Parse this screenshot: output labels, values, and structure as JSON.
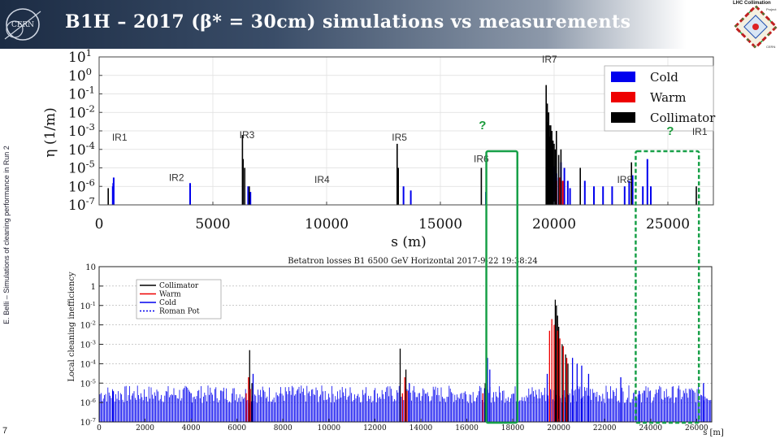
{
  "slide": {
    "title": "B1H – 2017 (β* = 30cm) simulations vs measurements",
    "side_text": "E. Belli – Simulations of cleaning performance in Run 2",
    "page_number": "7",
    "logo_text": "CERN",
    "project_title": "LHC Collimation",
    "project_sub": "Project",
    "project_cern": "CERN",
    "colors": {
      "cold": "#0000ee",
      "warm": "#ee0000",
      "collimator": "#000000",
      "green_box": "#18a048",
      "header_dark": "#1c2c44"
    }
  },
  "chart_data": [
    {
      "type": "bar",
      "title": "",
      "xlabel": "s (m)",
      "ylabel": "η (1/m)",
      "xlim": [
        0,
        27000
      ],
      "ylim": [
        1e-07,
        10
      ],
      "yscale": "log",
      "grid": true,
      "xticks": [
        "0",
        "5000",
        "10000",
        "15000",
        "20000",
        "25000"
      ],
      "yticks": [
        "10^1",
        "10^0",
        "10^-1",
        "10^-2",
        "10^-3",
        "10^-4",
        "10^-5",
        "10^-6",
        "10^-7"
      ],
      "legend_position": "top-right",
      "series": [
        {
          "name": "Cold",
          "color": "#0000ee",
          "points": [
            [
              600,
              1e-06
            ],
            [
              620,
              1.5e-06
            ],
            [
              640,
              3e-06
            ],
            [
              4000,
              1.5e-06
            ],
            [
              6550,
              1e-06
            ],
            [
              6650,
              5e-07
            ],
            [
              13380,
              1e-06
            ],
            [
              13700,
              6e-07
            ],
            [
              17000,
              5e-07
            ],
            [
              19880,
              3e-06
            ],
            [
              19950,
              8e-06
            ],
            [
              20000,
              1.2e-05
            ],
            [
              20100,
              5e-06
            ],
            [
              20200,
              3e-06
            ],
            [
              20300,
              2e-05
            ],
            [
              20450,
              1e-05
            ],
            [
              20600,
              2e-06
            ],
            [
              20700,
              8e-07
            ],
            [
              21350,
              2e-06
            ],
            [
              21750,
              1e-06
            ],
            [
              22150,
              1e-06
            ],
            [
              22550,
              1e-06
            ],
            [
              23100,
              1e-06
            ],
            [
              23300,
              2e-06
            ],
            [
              23450,
              4e-06
            ],
            [
              23900,
              1e-06
            ],
            [
              24100,
              3e-05
            ],
            [
              24250,
              1e-06
            ]
          ]
        },
        {
          "name": "Warm",
          "color": "#ee0000",
          "points": [
            [
              19900,
              2e-06
            ],
            [
              20100,
              2e-06
            ],
            [
              20250,
              3e-06
            ],
            [
              20380,
              2e-06
            ]
          ]
        },
        {
          "name": "Collimator",
          "color": "#000000",
          "points": [
            [
              400,
              8e-07
            ],
            [
              6300,
              0.0006
            ],
            [
              6330,
              3e-05
            ],
            [
              6400,
              1e-05
            ],
            [
              6600,
              1e-06
            ],
            [
              13100,
              0.0002
            ],
            [
              13150,
              1e-05
            ],
            [
              16800,
              1e-05
            ],
            [
              19650,
              0.3
            ],
            [
              19700,
              0.03
            ],
            [
              19730,
              0.003
            ],
            [
              19760,
              0.01
            ],
            [
              19790,
              0.002
            ],
            [
              19820,
              0.0005
            ],
            [
              19850,
              0.002
            ],
            [
              19900,
              0.001
            ],
            [
              19950,
              0.0003
            ],
            [
              20000,
              0.0002
            ],
            [
              20050,
              0.0001
            ],
            [
              20100,
              0.001
            ],
            [
              20200,
              5e-05
            ],
            [
              20300,
              0.0001
            ],
            [
              21150,
              1e-05
            ],
            [
              23400,
              2e-05
            ],
            [
              26250,
              1e-06
            ]
          ]
        }
      ],
      "annotations": {
        "ir_labels": [
          {
            "label": "IR7",
            "s": 19800,
            "y": 5
          },
          {
            "label": "IR1",
            "s": 900,
            "y": 0.0003
          },
          {
            "label": "IR3",
            "s": 6500,
            "y": 0.0004
          },
          {
            "label": "IR5",
            "s": 13200,
            "y": 0.0003
          },
          {
            "label": "IR6",
            "s": 16800,
            "y": 2e-05
          },
          {
            "label": "IR2",
            "s": 3400,
            "y": 2e-06
          },
          {
            "label": "IR4",
            "s": 9800,
            "y": 1.5e-06
          },
          {
            "label": "IR8",
            "s": 23100,
            "y": 1.5e-06
          },
          {
            "label": "IR1",
            "s": 26400,
            "y": 0.0006
          }
        ],
        "question_marks": [
          {
            "label": "?",
            "s": 16850,
            "y": 0.0012
          },
          {
            "label": "?",
            "s": 25100,
            "y": 0.0006
          }
        ]
      }
    },
    {
      "type": "bar",
      "title": "Betatron losses B1 6500 GeV Horizontal 2017-9-22 19:38:24",
      "xlabel": "s [m]",
      "ylabel": "Local cleaning inefficiency",
      "xlim": [
        0,
        26659
      ],
      "ylim": [
        1e-07,
        10
      ],
      "yscale": "log",
      "grid": true,
      "xticks": [
        "0",
        "2000",
        "4000",
        "6000",
        "8000",
        "10000",
        "12000",
        "14000",
        "16000",
        "18000",
        "20000",
        "22000",
        "24000",
        "26000"
      ],
      "yticks": [
        "10",
        "1",
        "10^-1",
        "10^-2",
        "10^-3",
        "10^-4",
        "10^-5",
        "10^-6",
        "10^-7"
      ],
      "legend_position": "top-left",
      "series": [
        {
          "name": "Collimator",
          "color": "#000000",
          "points": [
            [
              6550,
              0.0005
            ],
            [
              6650,
              1e-05
            ],
            [
              13100,
              0.0006
            ],
            [
              13350,
              5e-05
            ],
            [
              16800,
              1e-05
            ],
            [
              19850,
              0.2
            ],
            [
              19900,
              0.1
            ],
            [
              19950,
              0.03
            ],
            [
              20000,
              0.008
            ],
            [
              20150,
              0.001
            ],
            [
              20300,
              0.0003
            ],
            [
              20400,
              0.0001
            ]
          ]
        },
        {
          "name": "Warm",
          "color": "#ee0000",
          "points": [
            [
              6400,
              3e-06
            ],
            [
              6500,
              2e-05
            ],
            [
              6580,
              5e-06
            ],
            [
              13200,
              3e-06
            ],
            [
              13300,
              2e-05
            ],
            [
              13400,
              4e-06
            ],
            [
              16700,
              3e-06
            ],
            [
              19600,
              0.005
            ],
            [
              19700,
              0.02
            ],
            [
              19800,
              0.01
            ],
            [
              19950,
              0.005
            ],
            [
              20050,
              0.002
            ],
            [
              20200,
              0.0008
            ],
            [
              20350,
              0.0002
            ]
          ]
        },
        {
          "name": "Cold",
          "color": "#0000ee",
          "noise_level": 3e-06,
          "points": [
            [
              600,
              4e-06
            ],
            [
              4000,
              3e-06
            ],
            [
              6700,
              3e-05
            ],
            [
              13500,
              1e-05
            ],
            [
              16900,
              0.0002
            ],
            [
              17000,
              5e-05
            ],
            [
              19500,
              3e-05
            ],
            [
              20600,
              0.0002
            ],
            [
              20800,
              0.0001
            ],
            [
              21000,
              8e-05
            ],
            [
              21300,
              3e-05
            ],
            [
              22700,
              2e-05
            ],
            [
              23500,
              4e-06
            ],
            [
              26300,
              1e-05
            ]
          ]
        },
        {
          "name": "Roman Pot",
          "color": "#0000ee",
          "points": []
        }
      ],
      "highlight_boxes": [
        {
          "x": [
            16850,
            18200
          ],
          "style": "solid",
          "color": "#18a048"
        },
        {
          "x": [
            23350,
            26100
          ],
          "style": "dashed",
          "color": "#18a048"
        }
      ]
    }
  ]
}
